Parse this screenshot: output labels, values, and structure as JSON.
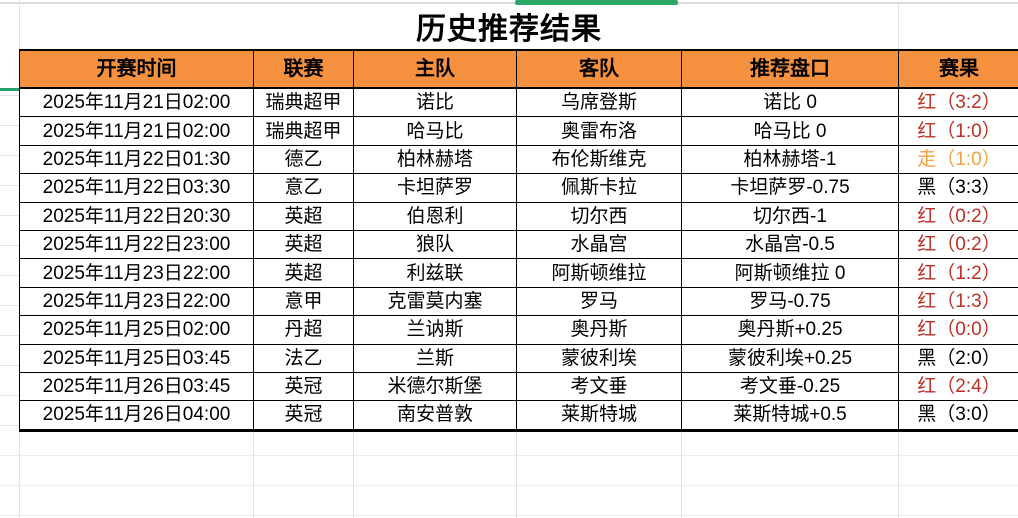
{
  "page": {
    "title": "历史推荐结果"
  },
  "table": {
    "headers": [
      "开赛时间",
      "联赛",
      "主队",
      "客队",
      "推荐盘口",
      "赛果"
    ],
    "rows": [
      {
        "time": "2025年11月21日02:00",
        "league": "瑞典超甲",
        "home": "诺比",
        "away": "乌席登斯",
        "handicap": "诺比 0",
        "result": "红（3:2）",
        "result_type": "red"
      },
      {
        "time": "2025年11月21日02:00",
        "league": "瑞典超甲",
        "home": "哈马比",
        "away": "奥雷布洛",
        "handicap": "哈马比 0",
        "result": "红（1:0）",
        "result_type": "red"
      },
      {
        "time": "2025年11月22日01:30",
        "league": "德乙",
        "home": "柏林赫塔",
        "away": "布伦斯维克",
        "handicap": "柏林赫塔-1",
        "result": "走（1:0）",
        "result_type": "push"
      },
      {
        "time": "2025年11月22日03:30",
        "league": "意乙",
        "home": "卡坦萨罗",
        "away": "佩斯卡拉",
        "handicap": "卡坦萨罗-0.75",
        "result": "黑（3:3）",
        "result_type": "black"
      },
      {
        "time": "2025年11月22日20:30",
        "league": "英超",
        "home": "伯恩利",
        "away": "切尔西",
        "handicap": "切尔西-1",
        "result": "红（0:2）",
        "result_type": "red"
      },
      {
        "time": "2025年11月22日23:00",
        "league": "英超",
        "home": "狼队",
        "away": "水晶宫",
        "handicap": "水晶宫-0.5",
        "result": "红（0:2）",
        "result_type": "red"
      },
      {
        "time": "2025年11月23日22:00",
        "league": "英超",
        "home": "利兹联",
        "away": "阿斯顿维拉",
        "handicap": "阿斯顿维拉 0",
        "result": "红（1:2）",
        "result_type": "red"
      },
      {
        "time": "2025年11月23日22:00",
        "league": "意甲",
        "home": "克雷莫内塞",
        "away": "罗马",
        "handicap": "罗马-0.75",
        "result": "红（1:3）",
        "result_type": "red"
      },
      {
        "time": "2025年11月25日02:00",
        "league": "丹超",
        "home": "兰讷斯",
        "away": "奥丹斯",
        "handicap": "奥丹斯+0.25",
        "result": "红（0:0）",
        "result_type": "red"
      },
      {
        "time": "2025年11月25日03:45",
        "league": "法乙",
        "home": "兰斯",
        "away": "蒙彼利埃",
        "handicap": "蒙彼利埃+0.25",
        "result": "黑（2:0）",
        "result_type": "black"
      },
      {
        "time": "2025年11月26日03:45",
        "league": "英冠",
        "home": "米德尔斯堡",
        "away": "考文垂",
        "handicap": "考文垂-0.25",
        "result": "红（2:4）",
        "result_type": "red"
      },
      {
        "time": "2025年11月26日04:00",
        "league": "英冠",
        "home": "南安普敦",
        "away": "莱斯特城",
        "handicap": "莱斯特城+0.5",
        "result": "黑（3:0）",
        "result_type": "black"
      }
    ]
  },
  "colors": {
    "header_bg": "#F6923F",
    "result_red": "#BD3124",
    "result_push": "#F2A33C",
    "result_black": "#000000",
    "accent_green": "#2BA765",
    "teal_marker": "#26A269"
  }
}
